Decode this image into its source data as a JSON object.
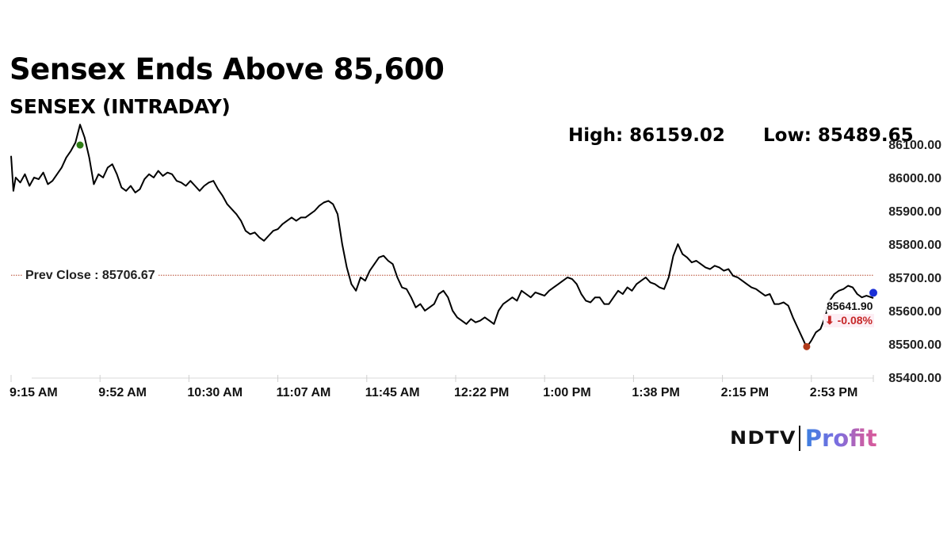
{
  "header": {
    "title": "Sensex Ends Above 85,600",
    "subtitle": "SENSEX (INTRADAY)",
    "high_label": "High: 86159.02",
    "low_label": "Low: 85489.65"
  },
  "annotations": {
    "prev_close_label": "Prev Close : 85706.67",
    "last_value": "85641.90",
    "change": "⬇ -0.08%"
  },
  "brand": {
    "ndtv": "NDTV",
    "profit": "Profit"
  },
  "colors": {
    "line": "#000000",
    "prev_close_line": "#b5452b",
    "high_marker": "#2e7d14",
    "low_marker": "#b03a1a",
    "last_marker": "#1a2fd6",
    "change_text": "#c62828"
  },
  "chart_data": {
    "type": "line",
    "title": "Sensex Ends Above 85,600",
    "subtitle": "SENSEX (INTRADAY)",
    "xlabel": "",
    "ylabel": "",
    "ylim": [
      85400,
      86100
    ],
    "y_ticks": [
      "86100.00",
      "86000.00",
      "85900.00",
      "85800.00",
      "85700.00",
      "85600.00",
      "85500.00",
      "85400.00"
    ],
    "x_ticks": [
      "9:15 AM",
      "9:52 AM",
      "10:30 AM",
      "11:07 AM",
      "11:45 AM",
      "12:22 PM",
      "1:00 PM",
      "1:38 PM",
      "2:15 PM",
      "2:53 PM"
    ],
    "grid": false,
    "legend": null,
    "high": 86159.02,
    "low": 85489.65,
    "prev_close": 85706.67,
    "last": 85641.9,
    "change_pct": -0.08,
    "series": [
      {
        "name": "SENSEX",
        "x_minutes_from_915": [
          0,
          1,
          2,
          4,
          6,
          8,
          10,
          12,
          14,
          16,
          18,
          20,
          22,
          24,
          26,
          28,
          30,
          32,
          34,
          36,
          38,
          40,
          42,
          44,
          46,
          48,
          50,
          52,
          54,
          56,
          58,
          60,
          62,
          64,
          66,
          68,
          70,
          72,
          74,
          76,
          78,
          80,
          82,
          84,
          86,
          88,
          90,
          92,
          94,
          96,
          98,
          100,
          102,
          104,
          106,
          108,
          110,
          112,
          114,
          116,
          118,
          120,
          122,
          124,
          126,
          128,
          130,
          132,
          134,
          136,
          138,
          140,
          142,
          144,
          146,
          148,
          150,
          152,
          154,
          156,
          158,
          160,
          162,
          164,
          166,
          168,
          170,
          172,
          174,
          176,
          178,
          180,
          182,
          184,
          186,
          188,
          190,
          192,
          194,
          196,
          198,
          200,
          202,
          204,
          206,
          208,
          210,
          212,
          214,
          216,
          218,
          220,
          222,
          224,
          226,
          228,
          230,
          232,
          234,
          236,
          238,
          240,
          242,
          244,
          246,
          248,
          250,
          252,
          254,
          256,
          258,
          260,
          262,
          264,
          266,
          268,
          270,
          272,
          274,
          276,
          278,
          280,
          282,
          284,
          286,
          288,
          290,
          292,
          294,
          296,
          298,
          300,
          302,
          304,
          306,
          308,
          310,
          312,
          314,
          316,
          318,
          320,
          322,
          324,
          326,
          328,
          330,
          332,
          334,
          336,
          338,
          340,
          342,
          344,
          346,
          348,
          350,
          352,
          354,
          356,
          358,
          360,
          362,
          364,
          366,
          368,
          370,
          372,
          375
        ],
        "values": [
          86065,
          85960,
          86000,
          85985,
          86010,
          85975,
          86000,
          85995,
          86015,
          85980,
          85990,
          86010,
          86030,
          86060,
          86080,
          86105,
          86159,
          86120,
          86060,
          85980,
          86010,
          86000,
          86030,
          86040,
          86010,
          85970,
          85960,
          85975,
          85955,
          85965,
          85995,
          86010,
          86000,
          86020,
          86005,
          86015,
          86010,
          85990,
          85985,
          85975,
          85990,
          85975,
          85960,
          85975,
          85985,
          85990,
          85965,
          85945,
          85920,
          85905,
          85890,
          85870,
          85840,
          85830,
          85835,
          85820,
          85810,
          85825,
          85840,
          85845,
          85860,
          85870,
          85880,
          85870,
          85880,
          85880,
          85890,
          85900,
          85915,
          85925,
          85930,
          85920,
          85890,
          85800,
          85730,
          85680,
          85660,
          85700,
          85690,
          85720,
          85740,
          85760,
          85765,
          85750,
          85740,
          85700,
          85670,
          85665,
          85640,
          85610,
          85620,
          85600,
          85610,
          85620,
          85650,
          85660,
          85640,
          85600,
          85580,
          85570,
          85560,
          85575,
          85565,
          85570,
          85580,
          85570,
          85560,
          85600,
          85620,
          85630,
          85640,
          85630,
          85660,
          85650,
          85640,
          85655,
          85650,
          85645,
          85660,
          85670,
          85680,
          85690,
          85700,
          85695,
          85680,
          85650,
          85630,
          85625,
          85640,
          85640,
          85620,
          85620,
          85640,
          85660,
          85650,
          85670,
          85660,
          85680,
          85690,
          85700,
          85685,
          85680,
          85670,
          85665,
          85700,
          85765,
          85800,
          85770,
          85760,
          85745,
          85750,
          85740,
          85730,
          85725,
          85735,
          85730,
          85720,
          85725,
          85705,
          85700,
          85690,
          85680,
          85670,
          85665,
          85655,
          85645,
          85650,
          85620,
          85620,
          85625,
          85615,
          85580,
          85550,
          85520,
          85490,
          85510,
          85535,
          85545,
          85580,
          85630,
          85650,
          85660,
          85665,
          85675,
          85670,
          85650,
          85640,
          85645,
          85638,
          85660,
          85642
        ]
      }
    ]
  }
}
